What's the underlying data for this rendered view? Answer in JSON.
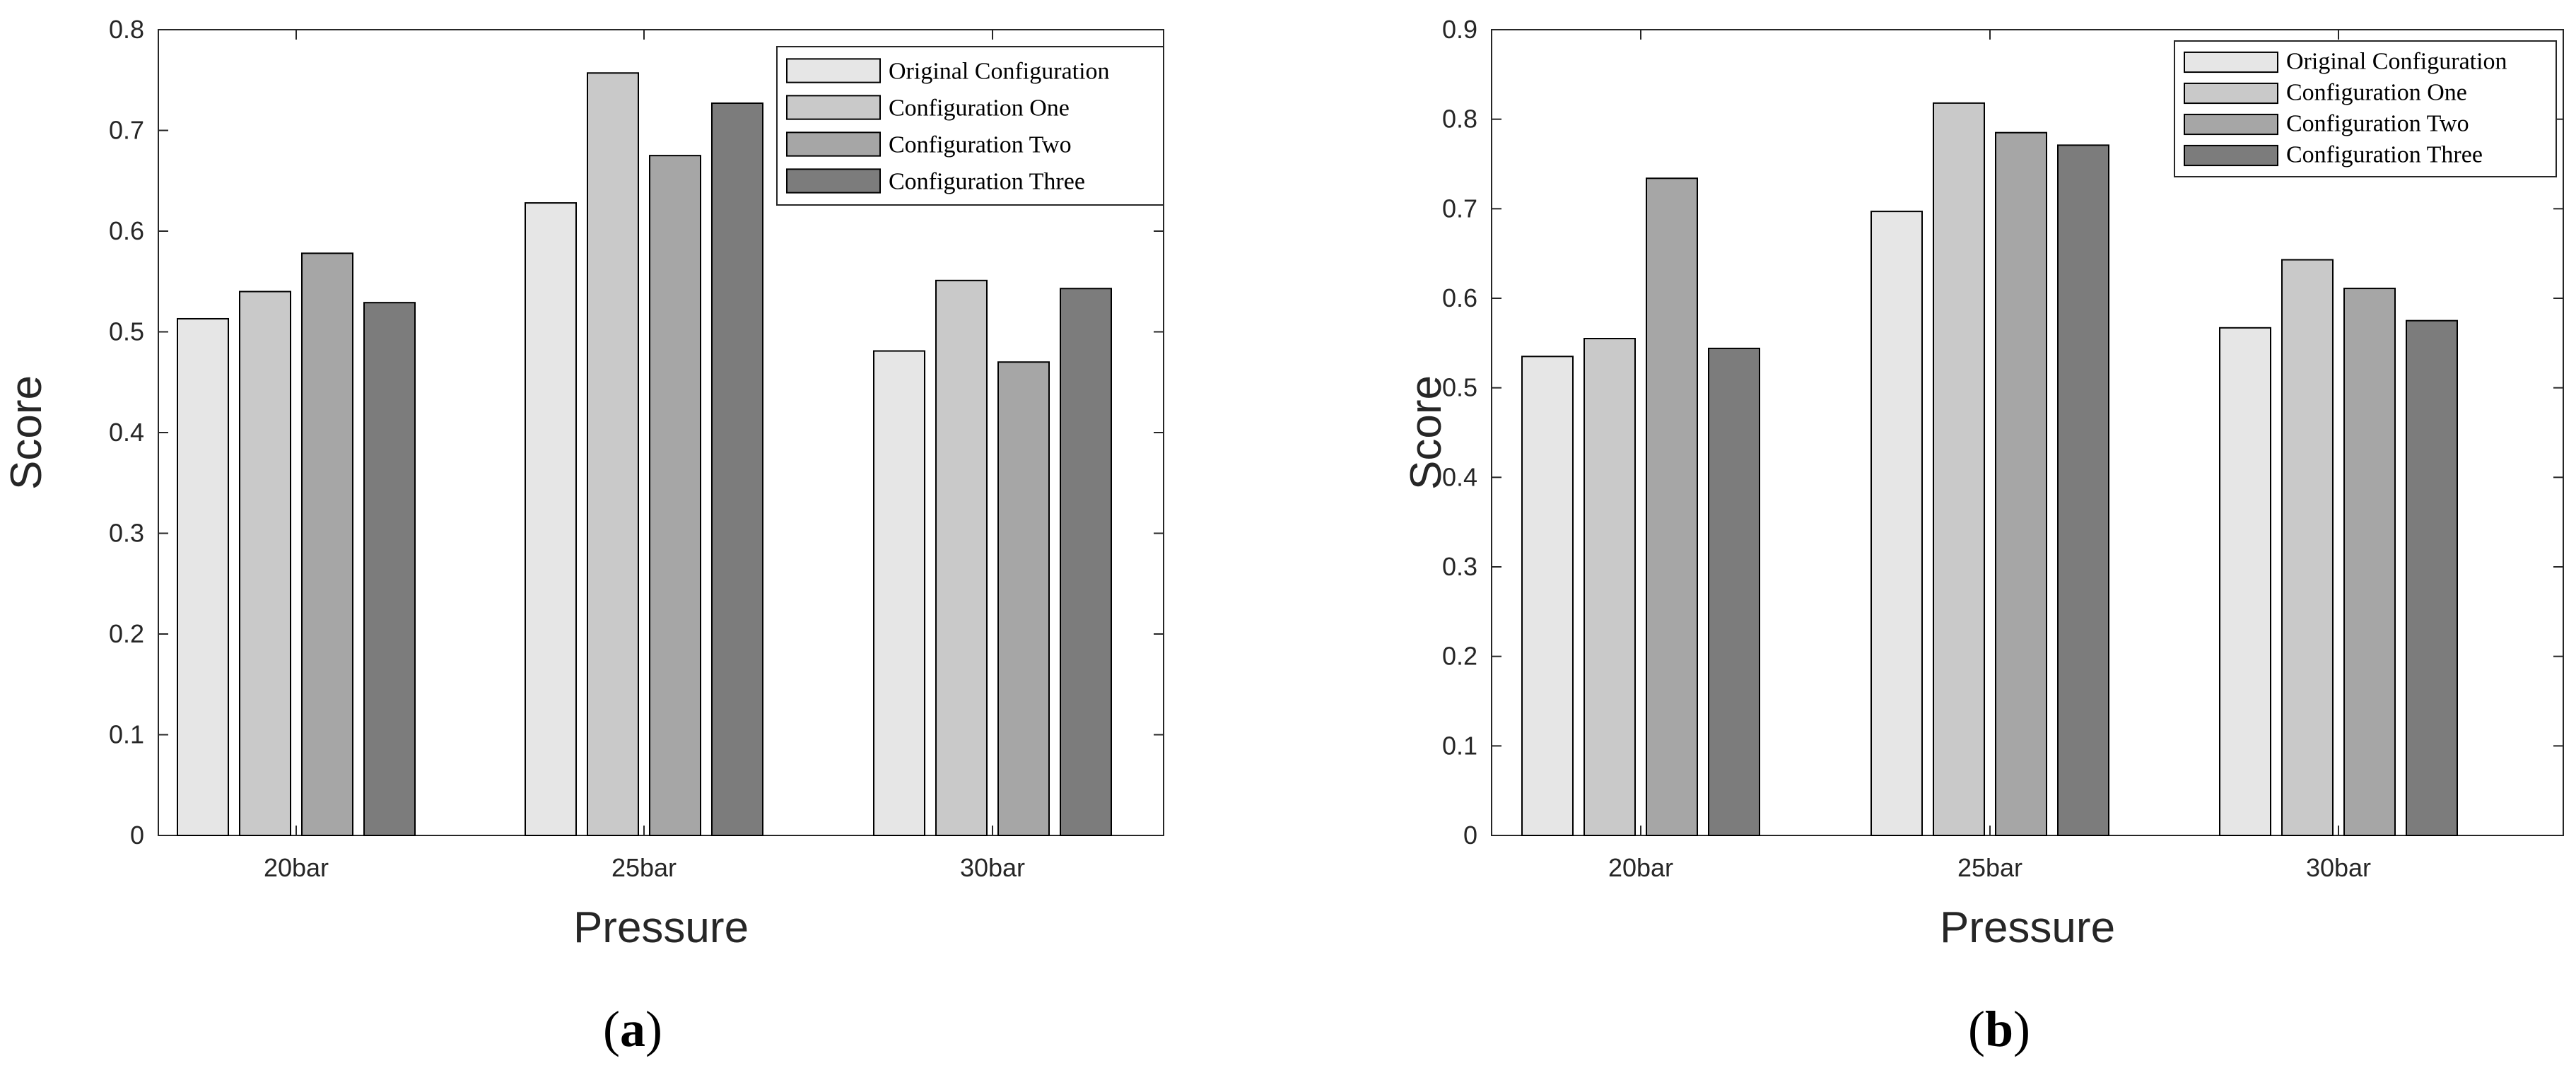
{
  "chart_data": [
    {
      "type": "bar",
      "panel_label": "(a)",
      "panel_letter": "a",
      "title": "",
      "xlabel": "Pressure",
      "ylabel": "Score",
      "ylim": [
        0,
        0.8
      ],
      "yticks": [
        "0",
        "0.1",
        "0.2",
        "0.3",
        "0.4",
        "0.5",
        "0.6",
        "0.7",
        "0.8"
      ],
      "categories": [
        "20bar",
        "25bar",
        "30bar"
      ],
      "legend_position": "top-right",
      "series": [
        {
          "name": "Original Configuration",
          "values": [
            0.513,
            0.628,
            0.481
          ]
        },
        {
          "name": "Configuration One",
          "values": [
            0.54,
            0.757,
            0.551
          ]
        },
        {
          "name": "Configuration Two",
          "values": [
            0.578,
            0.675,
            0.47
          ]
        },
        {
          "name": "Configuration Three",
          "values": [
            0.529,
            0.727,
            0.543
          ]
        }
      ]
    },
    {
      "type": "bar",
      "panel_label": "(b)",
      "panel_letter": "b",
      "title": "",
      "xlabel": "Pressure",
      "ylabel": "Score",
      "ylim": [
        0,
        0.9
      ],
      "yticks": [
        "0",
        "0.1",
        "0.2",
        "0.3",
        "0.4",
        "0.5",
        "0.6",
        "0.7",
        "0.8",
        "0.9"
      ],
      "categories": [
        "20bar",
        "25bar",
        "30bar"
      ],
      "legend_position": "top-right",
      "series": [
        {
          "name": "Original Configuration",
          "values": [
            0.535,
            0.697,
            0.567
          ]
        },
        {
          "name": "Configuration One",
          "values": [
            0.555,
            0.818,
            0.643
          ]
        },
        {
          "name": "Configuration Two",
          "values": [
            0.734,
            0.785,
            0.611
          ]
        },
        {
          "name": "Configuration Three",
          "values": [
            0.544,
            0.771,
            0.575
          ]
        }
      ]
    }
  ],
  "series_colors": [
    "#e6e6e6",
    "#c9c9c9",
    "#a6a6a6",
    "#7c7c7c"
  ],
  "bar_stroke": "#000000"
}
